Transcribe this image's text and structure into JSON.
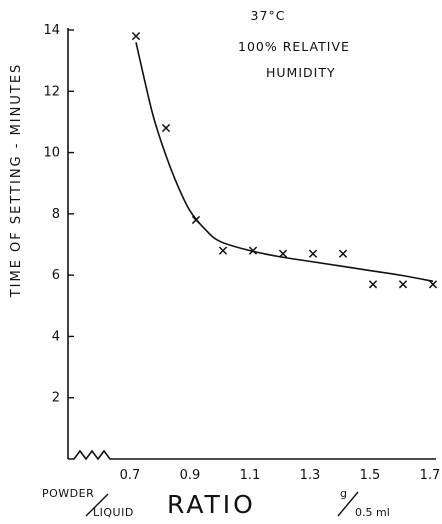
{
  "chart_data": {
    "type": "scatter",
    "title": "",
    "annotations": [
      "37°C",
      "100% RELATIVE",
      "HUMIDITY"
    ],
    "ylabel": "TIME OF SETTING - MINUTES",
    "xlabel": {
      "prefix_top": "POWDER",
      "prefix_bottom": "LIQUID",
      "main": "RATIO",
      "unit_g": "g",
      "unit_rest": "0.5 ml"
    },
    "xlim": [
      0.5,
      1.7
    ],
    "ylim": [
      0,
      14
    ],
    "x_axis_break": true,
    "grid": false,
    "x_ticks": [
      0.7,
      0.9,
      1.1,
      1.3,
      1.5,
      1.7
    ],
    "x_tick_labels": [
      "0.7",
      "0.9",
      "1.1",
      "1.3",
      "1.5",
      "1.7"
    ],
    "y_ticks": [
      2,
      4,
      6,
      8,
      10,
      12,
      14
    ],
    "y_tick_labels": [
      "2",
      "4",
      "6",
      "8",
      "10",
      "12",
      "14"
    ],
    "points": [
      {
        "x": 0.72,
        "y": 13.8
      },
      {
        "x": 0.82,
        "y": 10.8
      },
      {
        "x": 0.92,
        "y": 7.8
      },
      {
        "x": 1.01,
        "y": 6.8
      },
      {
        "x": 1.11,
        "y": 6.8
      },
      {
        "x": 1.21,
        "y": 6.7
      },
      {
        "x": 1.31,
        "y": 6.7
      },
      {
        "x": 1.41,
        "y": 6.7
      },
      {
        "x": 1.51,
        "y": 5.7
      },
      {
        "x": 1.61,
        "y": 5.7
      },
      {
        "x": 1.71,
        "y": 5.7
      }
    ],
    "fit_curve": [
      {
        "x": 0.72,
        "y": 13.6
      },
      {
        "x": 0.75,
        "y": 12.3
      },
      {
        "x": 0.78,
        "y": 11.1
      },
      {
        "x": 0.82,
        "y": 9.9
      },
      {
        "x": 0.86,
        "y": 8.9
      },
      {
        "x": 0.9,
        "y": 8.1
      },
      {
        "x": 0.95,
        "y": 7.5
      },
      {
        "x": 1.0,
        "y": 7.1
      },
      {
        "x": 1.1,
        "y": 6.8
      },
      {
        "x": 1.2,
        "y": 6.6
      },
      {
        "x": 1.3,
        "y": 6.45
      },
      {
        "x": 1.4,
        "y": 6.3
      },
      {
        "x": 1.5,
        "y": 6.15
      },
      {
        "x": 1.6,
        "y": 6.0
      },
      {
        "x": 1.71,
        "y": 5.8
      }
    ]
  }
}
